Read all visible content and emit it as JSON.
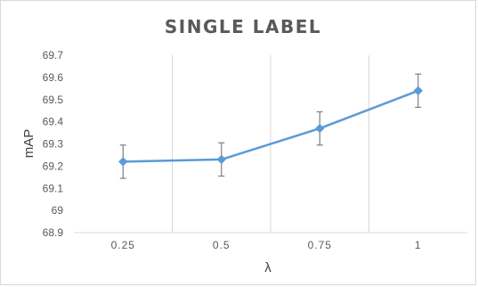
{
  "chart_data": {
    "type": "line",
    "title": "SINGLE LABEL",
    "xlabel": "λ",
    "ylabel": "mAP",
    "categories": [
      "0.25",
      "0.5",
      "0.75",
      "1"
    ],
    "series": [
      {
        "values": [
          69.22,
          69.23,
          69.37,
          69.54
        ],
        "error": [
          0.075,
          0.075,
          0.075,
          0.075
        ],
        "color": "#5B9BD5"
      }
    ],
    "ylim": [
      68.9,
      69.7
    ],
    "yticks": [
      "68.9",
      "69",
      "69.1",
      "69.2",
      "69.3",
      "69.4",
      "69.5",
      "69.6",
      "69.7"
    ],
    "grid": "vertical",
    "colors": {
      "line": "#5B9BD5",
      "grid": "#d9d9d9",
      "error_bar": "#7f7f7f",
      "text": "#595959"
    }
  }
}
